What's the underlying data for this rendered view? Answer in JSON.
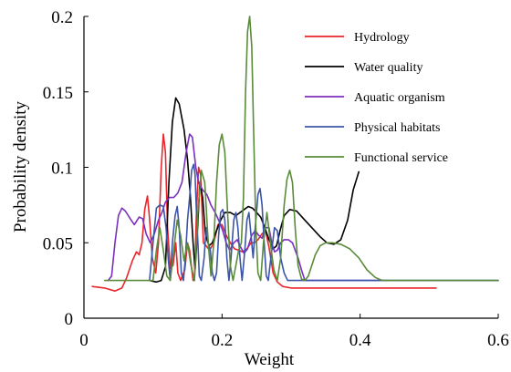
{
  "chart_data": {
    "type": "line",
    "xlabel": "Weight",
    "ylabel": "Probability density",
    "xlim": [
      0,
      0.6
    ],
    "ylim": [
      0,
      0.2
    ],
    "x_ticks": [
      0,
      0.2,
      0.4,
      0.6
    ],
    "x_tick_labels": [
      "0",
      "0.2",
      "0.4",
      "0.6"
    ],
    "y_ticks": [
      0,
      0.05,
      0.1,
      0.15,
      0.2
    ],
    "y_tick_labels": [
      "0",
      "0.05",
      "0.1",
      "0.15",
      "0.2"
    ],
    "grid": false,
    "legend_position": "top-right",
    "series": [
      {
        "name": "Hydrology",
        "color": "#e8262b",
        "points": [
          [
            0.012,
            0.021
          ],
          [
            0.03,
            0.02
          ],
          [
            0.045,
            0.018
          ],
          [
            0.055,
            0.02
          ],
          [
            0.062,
            0.027
          ],
          [
            0.07,
            0.038
          ],
          [
            0.076,
            0.044
          ],
          [
            0.08,
            0.042
          ],
          [
            0.084,
            0.05
          ],
          [
            0.088,
            0.072
          ],
          [
            0.092,
            0.081
          ],
          [
            0.095,
            0.066
          ],
          [
            0.099,
            0.04
          ],
          [
            0.104,
            0.03
          ],
          [
            0.108,
            0.05
          ],
          [
            0.112,
            0.1
          ],
          [
            0.115,
            0.122
          ],
          [
            0.118,
            0.11
          ],
          [
            0.121,
            0.06
          ],
          [
            0.125,
            0.033
          ],
          [
            0.129,
            0.035
          ],
          [
            0.133,
            0.05
          ],
          [
            0.136,
            0.03
          ],
          [
            0.14,
            0.025
          ],
          [
            0.146,
            0.032
          ],
          [
            0.15,
            0.05
          ],
          [
            0.153,
            0.045
          ],
          [
            0.156,
            0.033
          ],
          [
            0.158,
            0.025
          ],
          [
            0.16,
            0.025
          ],
          [
            0.163,
            0.07
          ],
          [
            0.166,
            0.1
          ],
          [
            0.169,
            0.095
          ],
          [
            0.173,
            0.05
          ],
          [
            0.177,
            0.048
          ],
          [
            0.182,
            0.045
          ],
          [
            0.188,
            0.05
          ],
          [
            0.194,
            0.062
          ],
          [
            0.2,
            0.062
          ],
          [
            0.206,
            0.055
          ],
          [
            0.212,
            0.05
          ],
          [
            0.218,
            0.046
          ],
          [
            0.224,
            0.045
          ],
          [
            0.23,
            0.044
          ],
          [
            0.236,
            0.046
          ],
          [
            0.242,
            0.05
          ],
          [
            0.247,
            0.05
          ],
          [
            0.252,
            0.052
          ],
          [
            0.258,
            0.056
          ],
          [
            0.263,
            0.058
          ],
          [
            0.268,
            0.047
          ],
          [
            0.274,
            0.03
          ],
          [
            0.28,
            0.024
          ],
          [
            0.288,
            0.021
          ],
          [
            0.3,
            0.02
          ],
          [
            0.32,
            0.02
          ],
          [
            0.38,
            0.02
          ],
          [
            0.45,
            0.02
          ],
          [
            0.51,
            0.02
          ]
        ]
      },
      {
        "name": "Water quality",
        "color": "#000000",
        "points": [
          [
            0.095,
            0.025
          ],
          [
            0.105,
            0.024
          ],
          [
            0.112,
            0.025
          ],
          [
            0.118,
            0.034
          ],
          [
            0.123,
            0.09
          ],
          [
            0.128,
            0.13
          ],
          [
            0.133,
            0.146
          ],
          [
            0.138,
            0.142
          ],
          [
            0.145,
            0.125
          ],
          [
            0.15,
            0.105
          ],
          [
            0.154,
            0.082
          ],
          [
            0.158,
            0.05
          ],
          [
            0.161,
            0.032
          ],
          [
            0.164,
            0.055
          ],
          [
            0.168,
            0.09
          ],
          [
            0.172,
            0.08
          ],
          [
            0.176,
            0.055
          ],
          [
            0.181,
            0.048
          ],
          [
            0.186,
            0.05
          ],
          [
            0.192,
            0.058
          ],
          [
            0.198,
            0.065
          ],
          [
            0.204,
            0.07
          ],
          [
            0.212,
            0.07
          ],
          [
            0.22,
            0.068
          ],
          [
            0.226,
            0.07
          ],
          [
            0.232,
            0.072
          ],
          [
            0.238,
            0.074
          ],
          [
            0.244,
            0.073
          ],
          [
            0.25,
            0.07
          ],
          [
            0.256,
            0.067
          ],
          [
            0.262,
            0.06
          ],
          [
            0.268,
            0.052
          ],
          [
            0.274,
            0.046
          ],
          [
            0.279,
            0.048
          ],
          [
            0.284,
            0.058
          ],
          [
            0.29,
            0.068
          ],
          [
            0.298,
            0.072
          ],
          [
            0.308,
            0.071
          ],
          [
            0.318,
            0.066
          ],
          [
            0.33,
            0.06
          ],
          [
            0.342,
            0.054
          ],
          [
            0.352,
            0.05
          ],
          [
            0.362,
            0.049
          ],
          [
            0.372,
            0.052
          ],
          [
            0.382,
            0.065
          ],
          [
            0.39,
            0.085
          ],
          [
            0.398,
            0.097
          ]
        ]
      },
      {
        "name": "Aquatic organism",
        "color": "#7b2fbe",
        "points": [
          [
            0.035,
            0.025
          ],
          [
            0.04,
            0.028
          ],
          [
            0.045,
            0.05
          ],
          [
            0.05,
            0.068
          ],
          [
            0.055,
            0.073
          ],
          [
            0.06,
            0.071
          ],
          [
            0.067,
            0.066
          ],
          [
            0.073,
            0.062
          ],
          [
            0.08,
            0.067
          ],
          [
            0.085,
            0.066
          ],
          [
            0.09,
            0.056
          ],
          [
            0.096,
            0.05
          ],
          [
            0.102,
            0.056
          ],
          [
            0.108,
            0.065
          ],
          [
            0.113,
            0.07
          ],
          [
            0.118,
            0.077
          ],
          [
            0.124,
            0.08
          ],
          [
            0.13,
            0.08
          ],
          [
            0.136,
            0.083
          ],
          [
            0.142,
            0.09
          ],
          [
            0.148,
            0.11
          ],
          [
            0.153,
            0.122
          ],
          [
            0.157,
            0.12
          ],
          [
            0.162,
            0.1
          ],
          [
            0.166,
            0.09
          ],
          [
            0.172,
            0.085
          ],
          [
            0.178,
            0.082
          ],
          [
            0.184,
            0.075
          ],
          [
            0.19,
            0.07
          ],
          [
            0.196,
            0.064
          ],
          [
            0.201,
            0.058
          ],
          [
            0.206,
            0.05
          ],
          [
            0.211,
            0.045
          ],
          [
            0.217,
            0.05
          ],
          [
            0.222,
            0.052
          ],
          [
            0.227,
            0.047
          ],
          [
            0.232,
            0.043
          ],
          [
            0.237,
            0.046
          ],
          [
            0.243,
            0.055
          ],
          [
            0.248,
            0.058
          ],
          [
            0.253,
            0.055
          ],
          [
            0.258,
            0.053
          ],
          [
            0.263,
            0.06
          ],
          [
            0.268,
            0.06
          ],
          [
            0.272,
            0.05
          ],
          [
            0.276,
            0.044
          ],
          [
            0.28,
            0.045
          ],
          [
            0.285,
            0.05
          ],
          [
            0.29,
            0.052
          ],
          [
            0.296,
            0.052
          ],
          [
            0.302,
            0.05
          ],
          [
            0.306,
            0.045
          ],
          [
            0.31,
            0.04
          ],
          [
            0.315,
            0.032
          ],
          [
            0.32,
            0.025
          ],
          [
            0.33,
            0.025
          ],
          [
            0.36,
            0.025
          ],
          [
            0.4,
            0.025
          ],
          [
            0.44,
            0.025
          ]
        ]
      },
      {
        "name": "Physical habitats",
        "color": "#3c55a8",
        "points": [
          [
            0.095,
            0.025
          ],
          [
            0.1,
            0.05
          ],
          [
            0.105,
            0.073
          ],
          [
            0.11,
            0.075
          ],
          [
            0.115,
            0.074
          ],
          [
            0.119,
            0.06
          ],
          [
            0.122,
            0.04
          ],
          [
            0.125,
            0.025
          ],
          [
            0.128,
            0.05
          ],
          [
            0.132,
            0.068
          ],
          [
            0.135,
            0.074
          ],
          [
            0.138,
            0.06
          ],
          [
            0.141,
            0.03
          ],
          [
            0.144,
            0.025
          ],
          [
            0.147,
            0.04
          ],
          [
            0.15,
            0.065
          ],
          [
            0.153,
            0.08
          ],
          [
            0.156,
            0.098
          ],
          [
            0.159,
            0.102
          ],
          [
            0.161,
            0.095
          ],
          [
            0.163,
            0.07
          ],
          [
            0.165,
            0.05
          ],
          [
            0.167,
            0.028
          ],
          [
            0.17,
            0.025
          ],
          [
            0.174,
            0.04
          ],
          [
            0.177,
            0.06
          ],
          [
            0.18,
            0.05
          ],
          [
            0.183,
            0.045
          ],
          [
            0.186,
            0.03
          ],
          [
            0.189,
            0.025
          ],
          [
            0.192,
            0.03
          ],
          [
            0.195,
            0.055
          ],
          [
            0.198,
            0.07
          ],
          [
            0.201,
            0.072
          ],
          [
            0.204,
            0.065
          ],
          [
            0.207,
            0.04
          ],
          [
            0.21,
            0.025
          ],
          [
            0.213,
            0.04
          ],
          [
            0.217,
            0.065
          ],
          [
            0.22,
            0.07
          ],
          [
            0.223,
            0.06
          ],
          [
            0.226,
            0.04
          ],
          [
            0.229,
            0.025
          ],
          [
            0.233,
            0.045
          ],
          [
            0.236,
            0.065
          ],
          [
            0.239,
            0.07
          ],
          [
            0.242,
            0.055
          ],
          [
            0.245,
            0.04
          ],
          [
            0.248,
            0.06
          ],
          [
            0.252,
            0.082
          ],
          [
            0.255,
            0.086
          ],
          [
            0.258,
            0.075
          ],
          [
            0.261,
            0.05
          ],
          [
            0.264,
            0.028
          ],
          [
            0.267,
            0.025
          ],
          [
            0.272,
            0.045
          ],
          [
            0.276,
            0.06
          ],
          [
            0.28,
            0.058
          ],
          [
            0.285,
            0.04
          ],
          [
            0.29,
            0.03
          ],
          [
            0.295,
            0.025
          ],
          [
            0.31,
            0.025
          ],
          [
            0.35,
            0.025
          ],
          [
            0.4,
            0.025
          ],
          [
            0.45,
            0.025
          ],
          [
            0.5,
            0.025
          ],
          [
            0.55,
            0.025
          ],
          [
            0.6,
            0.025
          ]
        ]
      },
      {
        "name": "Functional service",
        "color": "#5a8b3a",
        "points": [
          [
            0.03,
            0.025
          ],
          [
            0.05,
            0.025
          ],
          [
            0.07,
            0.025
          ],
          [
            0.09,
            0.025
          ],
          [
            0.1,
            0.025
          ],
          [
            0.105,
            0.045
          ],
          [
            0.11,
            0.06
          ],
          [
            0.115,
            0.045
          ],
          [
            0.12,
            0.028
          ],
          [
            0.125,
            0.025
          ],
          [
            0.13,
            0.045
          ],
          [
            0.135,
            0.065
          ],
          [
            0.14,
            0.055
          ],
          [
            0.145,
            0.038
          ],
          [
            0.15,
            0.05
          ],
          [
            0.155,
            0.035
          ],
          [
            0.16,
            0.025
          ],
          [
            0.165,
            0.07
          ],
          [
            0.17,
            0.098
          ],
          [
            0.175,
            0.09
          ],
          [
            0.18,
            0.05
          ],
          [
            0.184,
            0.028
          ],
          [
            0.188,
            0.05
          ],
          [
            0.192,
            0.09
          ],
          [
            0.196,
            0.115
          ],
          [
            0.2,
            0.122
          ],
          [
            0.204,
            0.11
          ],
          [
            0.208,
            0.07
          ],
          [
            0.212,
            0.035
          ],
          [
            0.216,
            0.025
          ],
          [
            0.22,
            0.035
          ],
          [
            0.224,
            0.045
          ],
          [
            0.228,
            0.05
          ],
          [
            0.231,
            0.08
          ],
          [
            0.234,
            0.15
          ],
          [
            0.237,
            0.19
          ],
          [
            0.24,
            0.2
          ],
          [
            0.243,
            0.18
          ],
          [
            0.246,
            0.12
          ],
          [
            0.249,
            0.06
          ],
          [
            0.252,
            0.03
          ],
          [
            0.256,
            0.025
          ],
          [
            0.26,
            0.05
          ],
          [
            0.265,
            0.07
          ],
          [
            0.27,
            0.05
          ],
          [
            0.275,
            0.032
          ],
          [
            0.28,
            0.025
          ],
          [
            0.285,
            0.04
          ],
          [
            0.29,
            0.075
          ],
          [
            0.294,
            0.092
          ],
          [
            0.298,
            0.098
          ],
          [
            0.302,
            0.09
          ],
          [
            0.306,
            0.06
          ],
          [
            0.31,
            0.035
          ],
          [
            0.315,
            0.026
          ],
          [
            0.32,
            0.025
          ],
          [
            0.325,
            0.028
          ],
          [
            0.33,
            0.035
          ],
          [
            0.335,
            0.042
          ],
          [
            0.342,
            0.048
          ],
          [
            0.35,
            0.05
          ],
          [
            0.36,
            0.05
          ],
          [
            0.372,
            0.049
          ],
          [
            0.385,
            0.046
          ],
          [
            0.398,
            0.04
          ],
          [
            0.41,
            0.032
          ],
          [
            0.422,
            0.027
          ],
          [
            0.432,
            0.025
          ],
          [
            0.45,
            0.025
          ],
          [
            0.5,
            0.025
          ],
          [
            0.55,
            0.025
          ],
          [
            0.6,
            0.025
          ]
        ]
      }
    ]
  }
}
